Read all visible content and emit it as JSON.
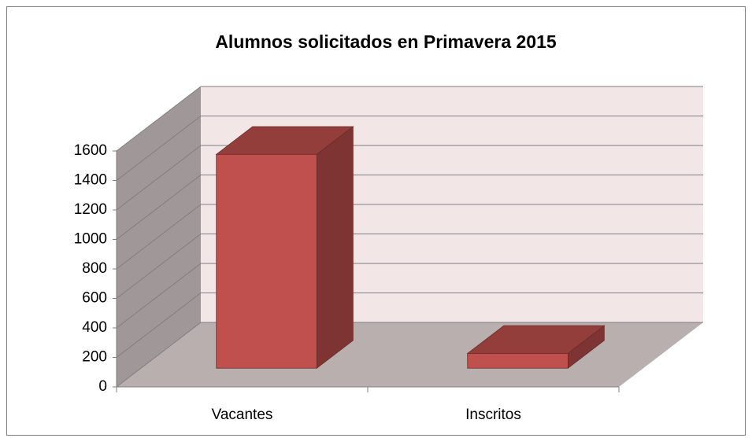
{
  "chart_data": {
    "type": "bar3d",
    "title": "Alumnos solicitados en Primavera 2015",
    "categories": [
      "Vacantes",
      "Inscritos"
    ],
    "values": [
      1450,
      100
    ],
    "color": "#c0504d",
    "ylim": [
      0,
      1600
    ],
    "yticks": [
      0,
      200,
      400,
      600,
      800,
      1000,
      1200,
      1400,
      1600
    ],
    "grid": true
  }
}
